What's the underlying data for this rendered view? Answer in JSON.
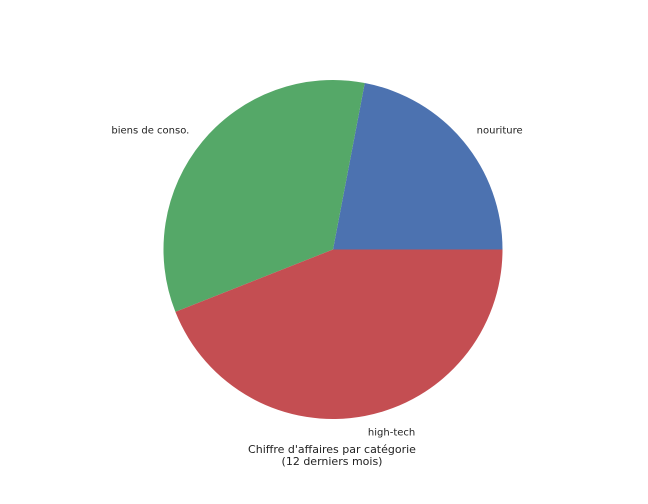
{
  "chart_data": {
    "type": "pie",
    "labels": [
      "nouriture",
      "biens de conso.",
      "high-tech"
    ],
    "values": [
      22,
      34,
      44
    ],
    "colors": [
      "#4c72b0",
      "#55a868",
      "#c44e52"
    ],
    "start_angle_deg": 0,
    "direction": "counterclockwise",
    "caption_line1": "Chiffre d'affaires par catégorie",
    "caption_line2": "(12 derniers mois)"
  }
}
